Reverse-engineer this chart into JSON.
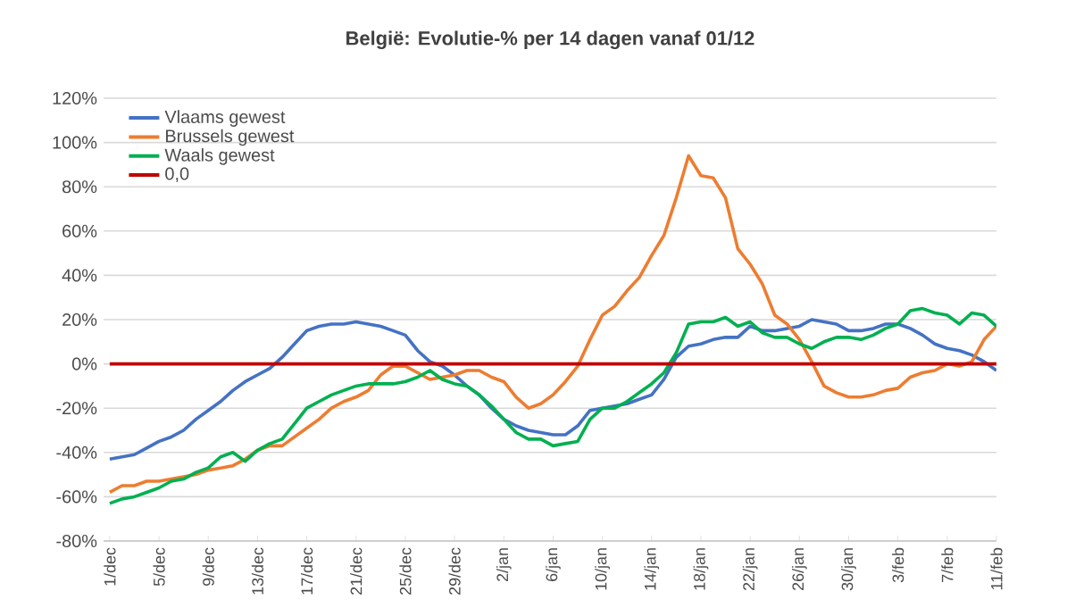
{
  "chart_data": {
    "type": "line",
    "title": "België: Evolutie-% per 14 dagen vanaf 01/12",
    "categories": [
      "1/dec",
      null,
      null,
      null,
      "5/dec",
      null,
      null,
      null,
      "9/dec",
      null,
      null,
      null,
      "13/dec",
      null,
      null,
      null,
      "17/dec",
      null,
      null,
      null,
      "21/dec",
      null,
      null,
      null,
      "25/dec",
      null,
      null,
      null,
      "29/dec",
      null,
      null,
      null,
      "2/jan",
      null,
      null,
      null,
      "6/jan",
      null,
      null,
      null,
      "10/jan",
      null,
      null,
      null,
      "14/jan",
      null,
      null,
      null,
      "18/jan",
      null,
      null,
      null,
      "22/jan",
      null,
      null,
      null,
      "26/jan",
      null,
      null,
      null,
      "30/jan",
      null,
      null,
      null,
      "3/feb",
      null,
      null,
      null,
      "7/feb",
      null,
      null,
      null,
      "11/feb"
    ],
    "series": [
      {
        "name": "Vlaams gewest",
        "color": "#4472c4",
        "values": [
          -43,
          -42,
          -41,
          -38,
          -35,
          -33,
          -30,
          -25,
          -21,
          -17,
          -12,
          -8,
          -5,
          -2,
          3,
          9,
          15,
          17,
          18,
          18,
          19,
          18,
          17,
          15,
          13,
          6,
          1,
          -1,
          -5,
          -10,
          -14,
          -20,
          -25,
          -28,
          -30,
          -31,
          -32,
          -32,
          -28,
          -21,
          -20,
          -19,
          -18,
          -16,
          -14,
          -7,
          3,
          8,
          9,
          11,
          12,
          12,
          17,
          15,
          15,
          16,
          17,
          20,
          19,
          18,
          15,
          15,
          16,
          18,
          18,
          16,
          13,
          9,
          7,
          6,
          4,
          1,
          -3
        ]
      },
      {
        "name": "Brussels gewest",
        "color": "#ed7d31",
        "values": [
          -58,
          -55,
          -55,
          -53,
          -53,
          -52,
          -51,
          -50,
          -48,
          -47,
          -46,
          -43,
          -39,
          -37,
          -37,
          -33,
          -29,
          -25,
          -20,
          -17,
          -15,
          -12,
          -5,
          -1,
          -1,
          -4,
          -7,
          -6,
          -5,
          -3,
          -3,
          -6,
          -8,
          -15,
          -20,
          -18,
          -14,
          -8,
          -1,
          11,
          22,
          26,
          33,
          39,
          49,
          58,
          75,
          94,
          85,
          84,
          75,
          52,
          45,
          36,
          22,
          18,
          11,
          1,
          -10,
          -13,
          -15,
          -15,
          -14,
          -12,
          -11,
          -6,
          -4,
          -3,
          0,
          -1,
          1,
          11,
          17
        ]
      },
      {
        "name": "Waals gewest",
        "color": "#00b050",
        "values": [
          -63,
          -61,
          -60,
          -58,
          -56,
          -53,
          -52,
          -49,
          -47,
          -42,
          -40,
          -44,
          -39,
          -36,
          -34,
          -27,
          -20,
          -17,
          -14,
          -12,
          -10,
          -9,
          -9,
          -9,
          -8,
          -6,
          -3,
          -7,
          -9,
          -10,
          -14,
          -19,
          -25,
          -31,
          -34,
          -34,
          -37,
          -36,
          -35,
          -25,
          -20,
          -20,
          -17,
          -13,
          -9,
          -4,
          5,
          18,
          19,
          19,
          21,
          17,
          19,
          14,
          12,
          12,
          9,
          7,
          10,
          12,
          12,
          11,
          13,
          16,
          18,
          24,
          25,
          23,
          22,
          18,
          23,
          22,
          17
        ]
      },
      {
        "name": "0,0",
        "color": "#c00000",
        "values": [
          0,
          0,
          0,
          0,
          0,
          0,
          0,
          0,
          0,
          0,
          0,
          0,
          0,
          0,
          0,
          0,
          0,
          0,
          0,
          0,
          0,
          0,
          0,
          0,
          0,
          0,
          0,
          0,
          0,
          0,
          0,
          0,
          0,
          0,
          0,
          0,
          0,
          0,
          0,
          0,
          0,
          0,
          0,
          0,
          0,
          0,
          0,
          0,
          0,
          0,
          0,
          0,
          0,
          0,
          0,
          0,
          0,
          0,
          0,
          0,
          0,
          0,
          0,
          0,
          0,
          0,
          0,
          0,
          0,
          0,
          0,
          0,
          0
        ]
      }
    ],
    "ylim": [
      -80,
      120
    ],
    "yticks": [
      {
        "value": -80,
        "label": "-80%"
      },
      {
        "value": -60,
        "label": "-60%"
      },
      {
        "value": -40,
        "label": "-40%"
      },
      {
        "value": -20,
        "label": "-20%"
      },
      {
        "value": 0,
        "label": "0%"
      },
      {
        "value": 20,
        "label": "20%"
      },
      {
        "value": 40,
        "label": "40%"
      },
      {
        "value": 60,
        "label": "60%"
      },
      {
        "value": 80,
        "label": "80%"
      },
      {
        "value": 100,
        "label": "100%"
      },
      {
        "value": 120,
        "label": "120%"
      }
    ],
    "grid": "y",
    "legend": "top left"
  }
}
